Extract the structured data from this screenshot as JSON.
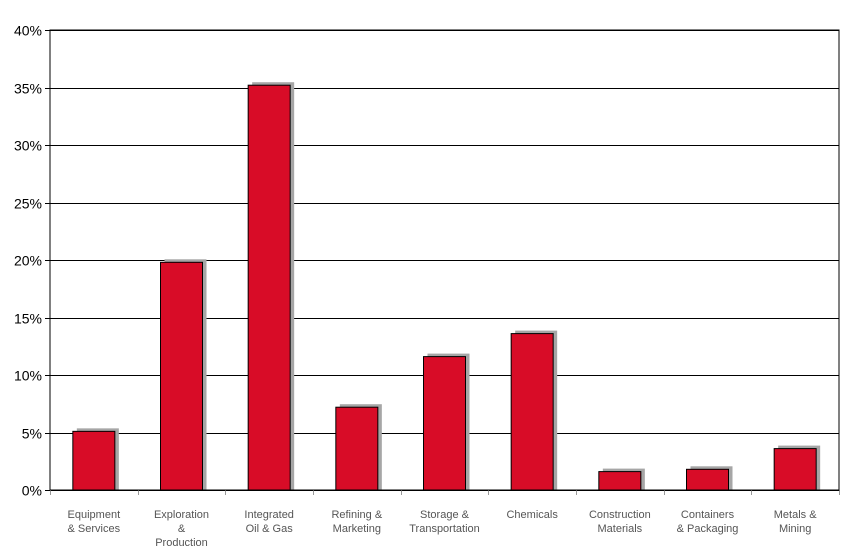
{
  "chart_data": {
    "type": "bar",
    "categories": [
      [
        "Equipment",
        "& Services"
      ],
      [
        "Exploration",
        "&",
        "Production"
      ],
      [
        "Integrated",
        "Oil & Gas"
      ],
      [
        "Refining &",
        "Marketing"
      ],
      [
        "Storage &",
        "Transportation"
      ],
      [
        "Chemicals"
      ],
      [
        "Construction",
        "Materials"
      ],
      [
        "Containers",
        "& Packaging"
      ],
      [
        "Metals &",
        "Mining"
      ]
    ],
    "values": [
      5.1,
      19.8,
      35.2,
      7.2,
      11.6,
      13.6,
      1.6,
      1.8,
      3.6
    ],
    "ylim": [
      0,
      40
    ],
    "yticks": [
      0,
      5,
      10,
      15,
      20,
      25,
      30,
      35,
      40
    ],
    "ytick_format": "%",
    "title": "",
    "xlabel": "",
    "ylabel": "",
    "grid": true,
    "legend": "none",
    "colors": {
      "bar": "#D80C27",
      "shadow": "#A6A6A6",
      "gridline": "#000000",
      "category_text": "#555555"
    }
  }
}
